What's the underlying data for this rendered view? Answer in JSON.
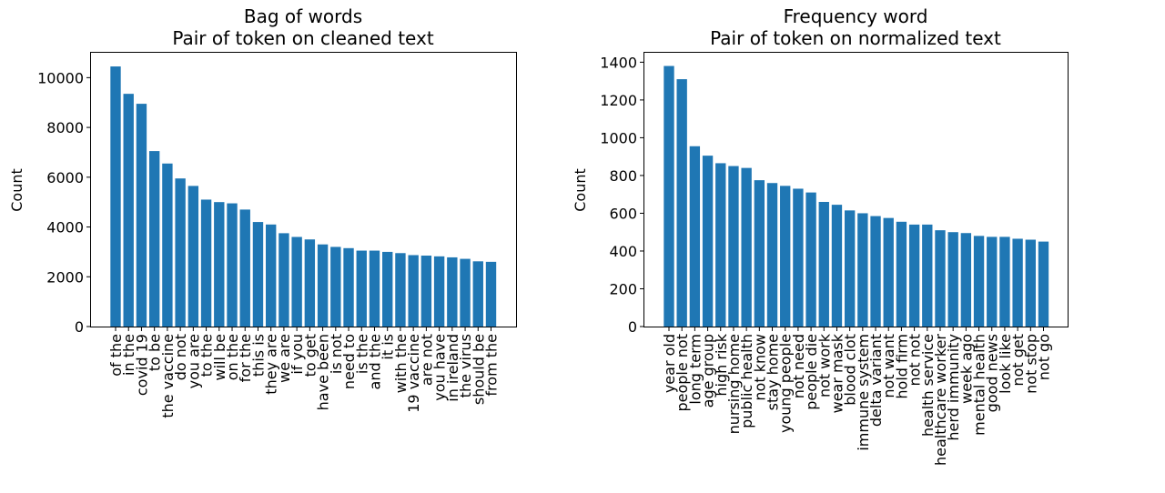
{
  "colors": {
    "bar": "#1f77b4"
  },
  "chart_data": [
    {
      "type": "bar",
      "title": "Bag of words",
      "subtitle": "Pair of token on cleaned text",
      "xlabel": "",
      "ylabel": "Count",
      "ylim": [
        0,
        11000
      ],
      "yticks": [
        0,
        2000,
        4000,
        6000,
        8000,
        10000
      ],
      "grid": false,
      "categories": [
        "of the",
        "in the",
        "covid 19",
        "to be",
        "the vaccine",
        "do not",
        "you are",
        "to the",
        "will be",
        "on the",
        "for the",
        "this is",
        "they are",
        "we are",
        "if you",
        "to get",
        "have been",
        "is not",
        "need to",
        "is the",
        "and the",
        "it is",
        "with the",
        "19 vaccine",
        "are not",
        "you have",
        "in ireland",
        "the virus",
        "should be",
        "from the"
      ],
      "values": [
        10450,
        9350,
        8950,
        7050,
        6550,
        5950,
        5650,
        5100,
        5000,
        4950,
        4700,
        4200,
        4100,
        3750,
        3600,
        3500,
        3300,
        3200,
        3150,
        3050,
        3050,
        3000,
        2950,
        2870,
        2850,
        2820,
        2780,
        2720,
        2620,
        2600
      ]
    },
    {
      "type": "bar",
      "title": "Frequency word",
      "subtitle": "Pair of token on normalized text",
      "xlabel": "",
      "ylabel": "Count",
      "ylim": [
        0,
        1450
      ],
      "yticks": [
        0,
        200,
        400,
        600,
        800,
        1000,
        1200,
        1400
      ],
      "grid": false,
      "categories": [
        "year old",
        "people not",
        "long term",
        "age group",
        "high risk",
        "nursing home",
        "public health",
        "not know",
        "stay home",
        "young people",
        "not need",
        "people die",
        "not work",
        "wear mask",
        "blood clot",
        "immune system",
        "delta variant",
        "not want",
        "hold firm",
        "not not",
        "health service",
        "healthcare worker",
        "herd immunity",
        "week ago",
        "mental health",
        "good news",
        "look like",
        "not get",
        "not stop",
        "not go"
      ],
      "values": [
        1380,
        1310,
        955,
        905,
        865,
        850,
        840,
        775,
        760,
        745,
        730,
        710,
        660,
        645,
        615,
        600,
        585,
        575,
        555,
        540,
        540,
        510,
        500,
        495,
        480,
        475,
        475,
        465,
        460,
        450
      ]
    }
  ]
}
